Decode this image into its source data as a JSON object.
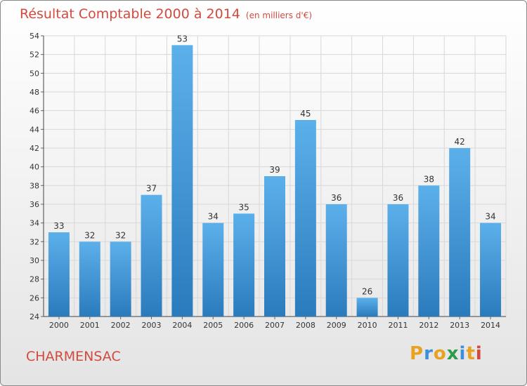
{
  "header": {
    "title": "Résultat Comptable 2000 à 2014",
    "subtitle": "(en milliers d'€)"
  },
  "footer": {
    "commune": "CHARMENSAC",
    "logo_text": "Proxiti",
    "logo_colors": [
      "#e8a21f",
      "#3f8fd8",
      "#e8a21f",
      "#2e9b48",
      "#3f8fd8",
      "#e8a21f",
      "#d24a3e"
    ]
  },
  "colors": {
    "bar_top": "#5cb0ea",
    "bar_bottom": "#2a7bbd",
    "title": "#d24a3e"
  },
  "chart_data": {
    "type": "bar",
    "title": "Résultat Comptable 2000 à 2014",
    "subtitle": "(en milliers d'€)",
    "categories": [
      "2000",
      "2001",
      "2002",
      "2003",
      "2004",
      "2005",
      "2006",
      "2007",
      "2008",
      "2009",
      "2010",
      "2011",
      "2012",
      "2013",
      "2014"
    ],
    "values": [
      33,
      32,
      32,
      37,
      53,
      34,
      35,
      39,
      45,
      36,
      26,
      36,
      38,
      42,
      34
    ],
    "ylim": [
      24,
      54
    ],
    "yticks": [
      24,
      26,
      28,
      30,
      32,
      34,
      36,
      38,
      40,
      42,
      44,
      46,
      48,
      50,
      52,
      54
    ],
    "grid": true,
    "xlabel": "",
    "ylabel": ""
  }
}
